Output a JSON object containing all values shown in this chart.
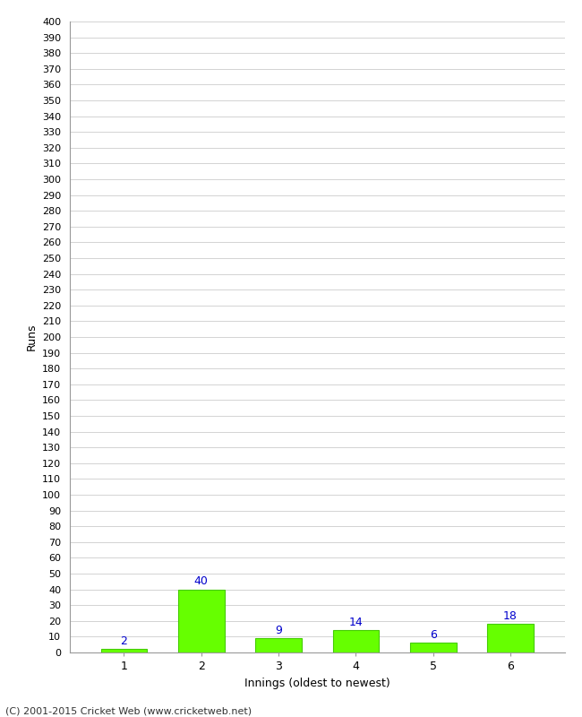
{
  "categories": [
    "1",
    "2",
    "3",
    "4",
    "5",
    "6"
  ],
  "values": [
    2,
    40,
    9,
    14,
    6,
    18
  ],
  "bar_color": "#66ff00",
  "bar_edge_color": "#44cc00",
  "label_color": "#0000cc",
  "xlabel": "Innings (oldest to newest)",
  "ylabel": "Runs",
  "ylim": [
    0,
    400
  ],
  "ytick_step": 10,
  "background_color": "#ffffff",
  "grid_color": "#cccccc",
  "footer": "(C) 2001-2015 Cricket Web (www.cricketweb.net)"
}
